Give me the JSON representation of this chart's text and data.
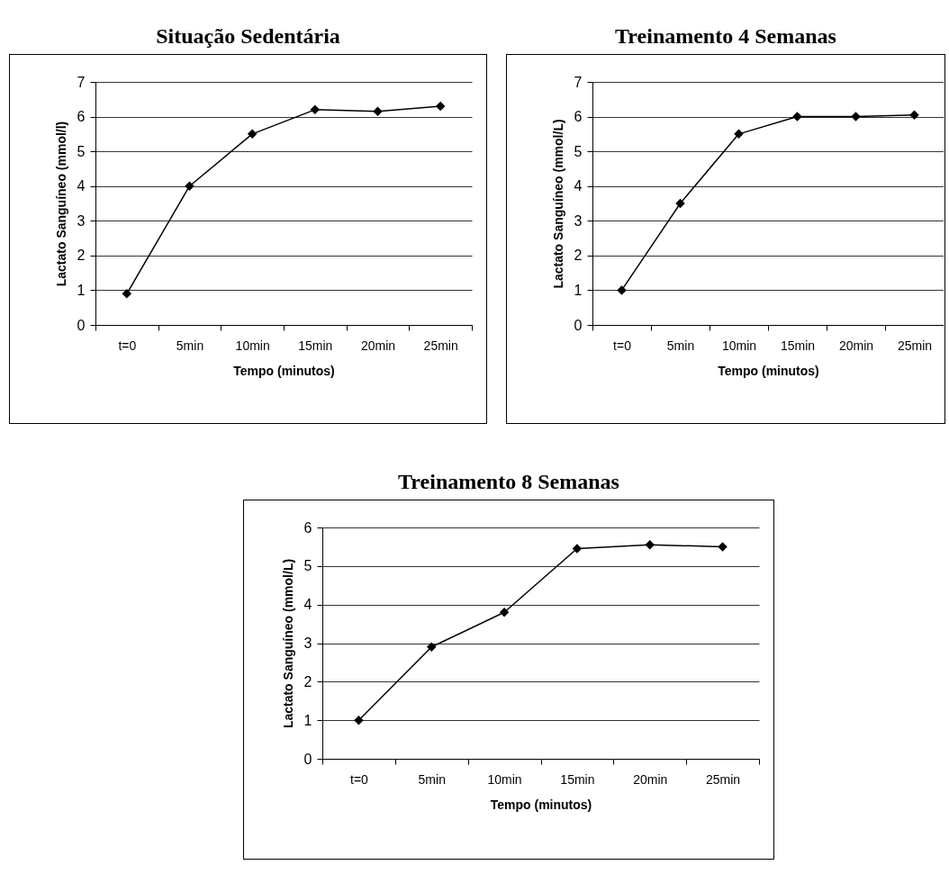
{
  "chart_data": [
    {
      "type": "line",
      "title": "Situação Sedentária",
      "xlabel": "Tempo (minutos)",
      "ylabel": "Lactato Sanguíneo (mmol/l)",
      "categories": [
        "t=0",
        "5min",
        "10min",
        "15min",
        "20min",
        "25min"
      ],
      "series": [
        {
          "color": "#000000",
          "values": [
            0.9,
            4.0,
            5.5,
            6.2,
            6.15,
            6.3
          ]
        }
      ],
      "ylim": [
        0,
        7
      ],
      "yticks": [
        0,
        1,
        2,
        3,
        4,
        5,
        6,
        7
      ],
      "grid": "y",
      "marker": "diamond",
      "line_style": "solid"
    },
    {
      "type": "line",
      "title": "Treinamento 4 Semanas",
      "xlabel": "Tempo (minutos)",
      "ylabel": "Lactato Sanguíneo (mmol/L)",
      "categories": [
        "t=0",
        "5min",
        "10min",
        "15min",
        "20min",
        "25min"
      ],
      "series": [
        {
          "color": "#000000",
          "values": [
            1.0,
            3.5,
            5.5,
            6.0,
            6.0,
            6.05
          ]
        }
      ],
      "ylim": [
        0,
        7
      ],
      "yticks": [
        0,
        1,
        2,
        3,
        4,
        5,
        6,
        7
      ],
      "grid": "y",
      "marker": "diamond",
      "line_style": "solid"
    },
    {
      "type": "line",
      "title": "Treinamento 8 Semanas",
      "xlabel": "Tempo (minutos)",
      "ylabel": "Lactato Sanguíneo (mmol/L)",
      "categories": [
        "t=0",
        "5min",
        "10min",
        "15min",
        "20min",
        "25min"
      ],
      "series": [
        {
          "color": "#000000",
          "values": [
            1.0,
            2.9,
            3.8,
            5.45,
            5.55,
            5.5
          ]
        }
      ],
      "ylim": [
        0,
        6
      ],
      "yticks": [
        0,
        1,
        2,
        3,
        4,
        5,
        6
      ],
      "grid": "y",
      "marker": "diamond",
      "line_style": "solid"
    }
  ]
}
